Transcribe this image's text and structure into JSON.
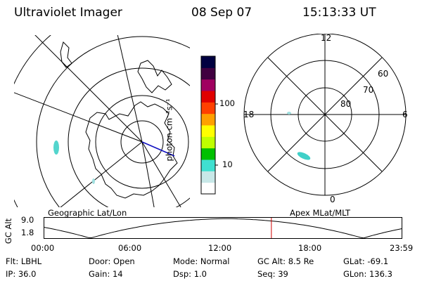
{
  "header": {
    "instrument": "Ultraviolet Imager",
    "date": "08 Sep 07",
    "time": "15:13:33 UT"
  },
  "colorbar": {
    "unit_label": "photon cm⁻²s⁻¹",
    "ticks": [
      "100",
      "10"
    ],
    "colors": [
      "#ffffff",
      "#c8e8e8",
      "#40e0d0",
      "#00c000",
      "#c0ff00",
      "#ffff00",
      "#ffa000",
      "#ff4000",
      "#e00000",
      "#a00060",
      "#400040",
      "#000040"
    ]
  },
  "geo_map": {
    "label": "Geographic Lat/Lon"
  },
  "polar_map": {
    "label": "Apex MLat/MLT",
    "mlt_labels": {
      "top": "12",
      "left": "18",
      "right": "6",
      "bottom": "0"
    },
    "lat_labels": [
      "60",
      "70",
      "80"
    ]
  },
  "altitude_plot": {
    "ylabel": "GC Alt",
    "y_ticks": [
      "9.0",
      "1.8"
    ],
    "x_ticks": [
      "00:00",
      "06:00",
      "12:00",
      "18:00",
      "23:59"
    ],
    "current_time_fraction": 0.635,
    "marker_color": "#d00000"
  },
  "info": {
    "row1": [
      {
        "label": "Flt:",
        "value": "LBHL"
      },
      {
        "label": "Door:",
        "value": "Open"
      },
      {
        "label": "Mode:",
        "value": "Normal"
      },
      {
        "label": "GC Alt:",
        "value": "8.5 Re"
      },
      {
        "label": "GLat:",
        "value": "-69.1"
      }
    ],
    "row2": [
      {
        "label": "IP:",
        "value": "36.0"
      },
      {
        "label": "Gain:",
        "value": "14"
      },
      {
        "label": "Dsp:",
        "value": "1.0"
      },
      {
        "label": "Seq:",
        "value": "39"
      },
      {
        "label": "GLon:",
        "value": "136.3"
      }
    ]
  }
}
